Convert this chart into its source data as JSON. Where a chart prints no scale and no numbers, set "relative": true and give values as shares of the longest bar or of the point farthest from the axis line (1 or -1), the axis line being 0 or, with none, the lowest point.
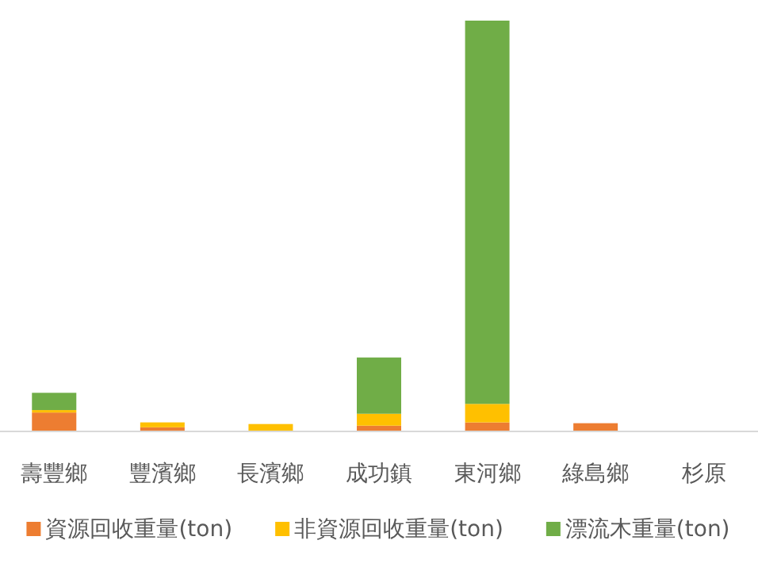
{
  "chart_data": {
    "type": "bar",
    "stacked": true,
    "relative": true,
    "legend": "bottom",
    "categories": [
      "壽豐鄉",
      "豐濱鄉",
      "長濱鄉",
      "成功鎮",
      "東河鄉",
      "綠島鄉",
      "杉原"
    ],
    "series": [
      {
        "name": "資源回收重量(ton)",
        "color": "#ed7d31",
        "values": [
          0.046,
          0.01,
          null,
          0.014,
          0.022,
          0.02,
          0
        ]
      },
      {
        "name": "非資源回收重量(ton)",
        "color": "#ffc000",
        "values": [
          0.006,
          0.012,
          0.018,
          0.029,
          0.045,
          0,
          0
        ]
      },
      {
        "name": "漂流木重量(ton)",
        "color": "#70ad47",
        "values": [
          0.042,
          0,
          0,
          0.137,
          0.933,
          0,
          0
        ]
      }
    ]
  }
}
